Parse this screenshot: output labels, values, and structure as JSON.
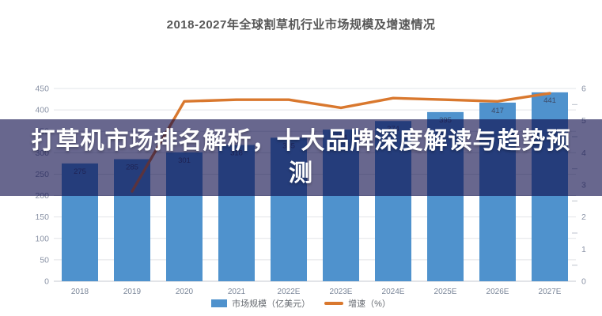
{
  "title": "2018-2027年全球割草机行业市场规模及增速情况",
  "overlay": {
    "text": "打草机市场排名解析，十大品牌深度解读与趋势预测"
  },
  "legend": {
    "market_size_label": "市场规模（亿美元）",
    "growth_label": "增速（%）"
  },
  "colors": {
    "bar": "#4f92cd",
    "line": "#d9782e",
    "banner": "rgba(12,10,72,0.62)",
    "grid": "#e2e4e8",
    "axis_text": "#8a93a6",
    "bar_label": "#3d4a66",
    "title_text": "#575757"
  },
  "chart_data": {
    "type": "bar",
    "combo": "bar+line",
    "title": "2018-2027年全球割草机行业市场规模及增速情况",
    "categories": [
      "2018",
      "2019",
      "2020",
      "2021",
      "2022E",
      "2023E",
      "2024E",
      "2025E",
      "2026E",
      "2027E"
    ],
    "series": [
      {
        "name": "市场规模（亿美元）",
        "type": "bar",
        "axis": "left",
        "color": "#4f92cd",
        "values": [
          275,
          285,
          301,
          318,
          335,
          354,
          374,
          395,
          417,
          441
        ]
      },
      {
        "name": "增速（%）",
        "type": "line",
        "axis": "right",
        "color": "#d9782e",
        "values": [
          null,
          2.8,
          5.6,
          5.65,
          5.65,
          5.4,
          5.7,
          5.65,
          5.6,
          5.85
        ]
      }
    ],
    "xlabel": "",
    "ylabel_left": "市场规模（亿美元）",
    "ylabel_right": "增速（%）",
    "left_axis": {
      "min": 0,
      "max": 450,
      "step": 50
    },
    "right_axis": {
      "min": 0,
      "max": 6,
      "step": 1,
      "minor_step": 0.5
    },
    "grid": true,
    "legend_position": "bottom"
  }
}
